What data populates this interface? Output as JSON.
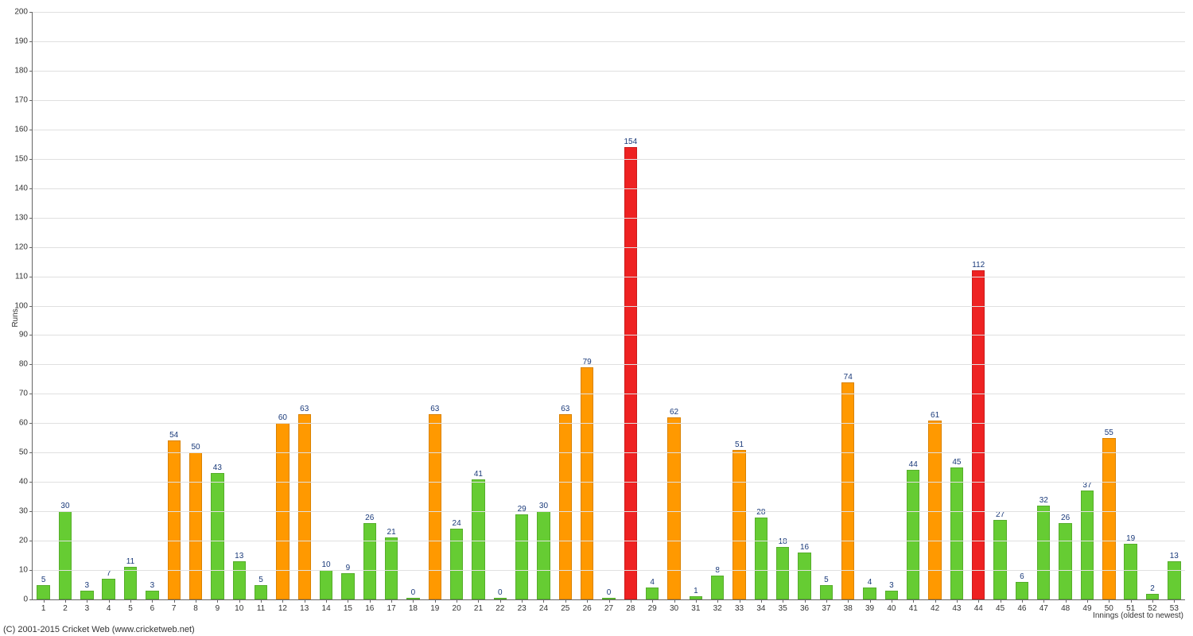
{
  "chart": {
    "type": "bar",
    "ylabel": "Runs",
    "xlabel": "Innings (oldest to newest)",
    "ylim": [
      0,
      200
    ],
    "ytick_step": 10,
    "background_color": "#ffffff",
    "grid_color": "#e0e0e0",
    "axis_color": "#666666",
    "label_fontsize": 10,
    "value_label_color": "#1a3a7a",
    "bar_width_ratio": 0.6,
    "colors": {
      "low": "#66cc33",
      "mid": "#ff9900",
      "high": "#ee2222"
    },
    "thresholds": {
      "mid": 50,
      "high": 100
    },
    "data": [
      {
        "x": 1,
        "value": 5
      },
      {
        "x": 2,
        "value": 30
      },
      {
        "x": 3,
        "value": 3
      },
      {
        "x": 4,
        "value": 7
      },
      {
        "x": 5,
        "value": 11
      },
      {
        "x": 6,
        "value": 3
      },
      {
        "x": 7,
        "value": 54
      },
      {
        "x": 8,
        "value": 50
      },
      {
        "x": 9,
        "value": 43
      },
      {
        "x": 10,
        "value": 13
      },
      {
        "x": 11,
        "value": 5
      },
      {
        "x": 12,
        "value": 60
      },
      {
        "x": 13,
        "value": 63
      },
      {
        "x": 14,
        "value": 10
      },
      {
        "x": 15,
        "value": 9
      },
      {
        "x": 16,
        "value": 26
      },
      {
        "x": 17,
        "value": 21
      },
      {
        "x": 18,
        "value": 0
      },
      {
        "x": 19,
        "value": 63
      },
      {
        "x": 20,
        "value": 24
      },
      {
        "x": 21,
        "value": 41
      },
      {
        "x": 22,
        "value": 0
      },
      {
        "x": 23,
        "value": 29
      },
      {
        "x": 24,
        "value": 30
      },
      {
        "x": 25,
        "value": 63
      },
      {
        "x": 26,
        "value": 79
      },
      {
        "x": 27,
        "value": 0
      },
      {
        "x": 28,
        "value": 154
      },
      {
        "x": 29,
        "value": 4
      },
      {
        "x": 30,
        "value": 62
      },
      {
        "x": 31,
        "value": 1
      },
      {
        "x": 32,
        "value": 8
      },
      {
        "x": 33,
        "value": 51
      },
      {
        "x": 34,
        "value": 28
      },
      {
        "x": 35,
        "value": 18
      },
      {
        "x": 36,
        "value": 16
      },
      {
        "x": 37,
        "value": 5
      },
      {
        "x": 38,
        "value": 74
      },
      {
        "x": 39,
        "value": 4
      },
      {
        "x": 40,
        "value": 3
      },
      {
        "x": 41,
        "value": 44
      },
      {
        "x": 42,
        "value": 61
      },
      {
        "x": 43,
        "value": 45
      },
      {
        "x": 44,
        "value": 112
      },
      {
        "x": 45,
        "value": 27
      },
      {
        "x": 46,
        "value": 6
      },
      {
        "x": 47,
        "value": 32
      },
      {
        "x": 48,
        "value": 26
      },
      {
        "x": 49,
        "value": 37
      },
      {
        "x": 50,
        "value": 55
      },
      {
        "x": 51,
        "value": 19
      },
      {
        "x": 52,
        "value": 2
      },
      {
        "x": 53,
        "value": 13
      }
    ]
  },
  "copyright": "(C) 2001-2015 Cricket Web (www.cricketweb.net)"
}
